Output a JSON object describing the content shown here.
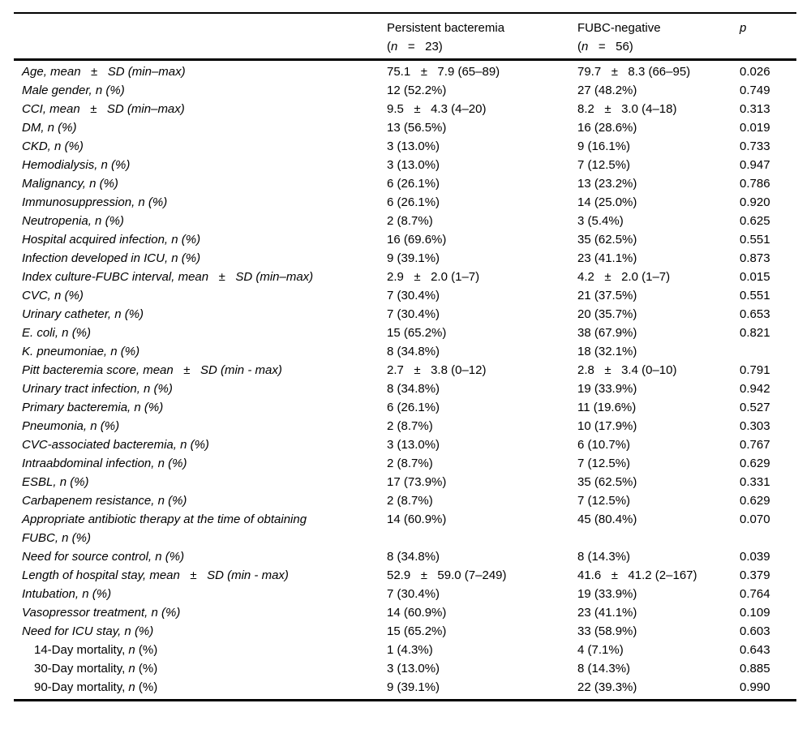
{
  "page": {
    "background_color": "#ffffff",
    "text_color": "#000000",
    "rule_color": "#000000"
  },
  "table": {
    "columns": [
      {
        "label": "",
        "sub": "",
        "italic": false
      },
      {
        "label": "Persistent bacteremia",
        "sub": "(n   =   23)",
        "italic": false
      },
      {
        "label": "FUBC-negative",
        "sub": "(n   =   56)",
        "italic": false
      },
      {
        "label": "p",
        "sub": "",
        "italic": true
      }
    ],
    "rows": [
      {
        "label": "Age, mean   ±   SD (min–max)",
        "italic": true,
        "indent": false,
        "values": [
          "75.1   ±   7.9 (65–89)",
          "79.7   ±   8.3 (66–95)",
          "0.026"
        ]
      },
      {
        "label": "Male gender, n (%)",
        "italic": true,
        "indent": false,
        "values": [
          "12 (52.2%)",
          "27 (48.2%)",
          "0.749"
        ]
      },
      {
        "label": "CCI, mean   ±   SD (min–max)",
        "italic": true,
        "indent": false,
        "values": [
          "9.5   ±   4.3 (4–20)",
          "8.2   ±   3.0 (4–18)",
          "0.313"
        ]
      },
      {
        "label": "DM, n (%)",
        "italic": true,
        "indent": false,
        "values": [
          "13 (56.5%)",
          "16 (28.6%)",
          "0.019"
        ]
      },
      {
        "label": "CKD, n (%)",
        "italic": true,
        "indent": false,
        "values": [
          "3 (13.0%)",
          "9 (16.1%)",
          "0.733"
        ]
      },
      {
        "label": "Hemodialysis, n (%)",
        "italic": true,
        "indent": false,
        "values": [
          "3 (13.0%)",
          "7 (12.5%)",
          "0.947"
        ]
      },
      {
        "label": "Malignancy, n (%)",
        "italic": true,
        "indent": false,
        "values": [
          "6 (26.1%)",
          "13 (23.2%)",
          "0.786"
        ]
      },
      {
        "label": "Immunosuppression, n (%)",
        "italic": true,
        "indent": false,
        "values": [
          "6 (26.1%)",
          "14 (25.0%)",
          "0.920"
        ]
      },
      {
        "label": "Neutropenia, n (%)",
        "italic": true,
        "indent": false,
        "values": [
          "2 (8.7%)",
          "3 (5.4%)",
          "0.625"
        ]
      },
      {
        "label": "Hospital acquired infection, n (%)",
        "italic": true,
        "indent": false,
        "values": [
          "16 (69.6%)",
          "35 (62.5%)",
          "0.551"
        ]
      },
      {
        "label": "Infection developed in ICU, n (%)",
        "italic": true,
        "indent": false,
        "values": [
          "9 (39.1%)",
          "23 (41.1%)",
          "0.873"
        ]
      },
      {
        "label": "Index culture-FUBC interval, mean   ±   SD (min–max)",
        "italic": true,
        "indent": false,
        "values": [
          "2.9   ±   2.0 (1–7)",
          "4.2   ±   2.0 (1–7)",
          "0.015"
        ]
      },
      {
        "label": "CVC, n (%)",
        "italic": true,
        "indent": false,
        "values": [
          "7 (30.4%)",
          "21 (37.5%)",
          "0.551"
        ]
      },
      {
        "label": "Urinary catheter, n (%)",
        "italic": true,
        "indent": false,
        "values": [
          "7 (30.4%)",
          "20 (35.7%)",
          "0.653"
        ]
      },
      {
        "label": "E. coli, n (%)",
        "italic": true,
        "indent": false,
        "values": [
          "15 (65.2%)",
          "38 (67.9%)",
          "0.821"
        ]
      },
      {
        "label": "K. pneumoniae, n (%)",
        "italic": true,
        "indent": false,
        "values": [
          "8 (34.8%)",
          "18 (32.1%)",
          ""
        ]
      },
      {
        "label": "Pitt bacteremia score, mean   ±   SD (min - max)",
        "italic": true,
        "indent": false,
        "values": [
          "2.7   ±   3.8 (0–12)",
          "2.8   ±   3.4 (0–10)",
          "0.791"
        ]
      },
      {
        "label": "Urinary tract infection, n (%)",
        "italic": true,
        "indent": false,
        "values": [
          "8 (34.8%)",
          "19 (33.9%)",
          "0.942"
        ]
      },
      {
        "label": "Primary bacteremia, n (%)",
        "italic": true,
        "indent": false,
        "values": [
          "6 (26.1%)",
          "11 (19.6%)",
          "0.527"
        ]
      },
      {
        "label": "Pneumonia, n (%)",
        "italic": true,
        "indent": false,
        "values": [
          "2 (8.7%)",
          "10 (17.9%)",
          "0.303"
        ]
      },
      {
        "label": "CVC-associated bacteremia, n (%)",
        "italic": true,
        "indent": false,
        "values": [
          "3 (13.0%)",
          "6 (10.7%)",
          "0.767"
        ]
      },
      {
        "label": "Intraabdominal infection, n (%)",
        "italic": true,
        "indent": false,
        "values": [
          "2 (8.7%)",
          "7 (12.5%)",
          "0.629"
        ]
      },
      {
        "label": "ESBL, n (%)",
        "italic": true,
        "indent": false,
        "values": [
          "17 (73.9%)",
          "35 (62.5%)",
          "0.331"
        ]
      },
      {
        "label": "Carbapenem resistance, n (%)",
        "italic": true,
        "indent": false,
        "values": [
          "2 (8.7%)",
          "7 (12.5%)",
          "0.629"
        ]
      },
      {
        "label": "Appropriate antibiotic therapy at the time of obtaining FUBC, n (%)",
        "italic": true,
        "indent": false,
        "values": [
          "14 (60.9%)",
          "45 (80.4%)",
          "0.070"
        ]
      },
      {
        "label": "Need for source control, n (%)",
        "italic": true,
        "indent": false,
        "values": [
          "8 (34.8%)",
          "8 (14.3%)",
          "0.039"
        ]
      },
      {
        "label": "Length of hospital stay, mean   ±   SD (min - max)",
        "italic": true,
        "indent": false,
        "values": [
          "52.9   ±   59.0 (7–249)",
          "41.6   ±   41.2 (2–167)",
          "0.379"
        ]
      },
      {
        "label": "Intubation, n (%)",
        "italic": true,
        "indent": false,
        "values": [
          "7 (30.4%)",
          "19 (33.9%)",
          "0.764"
        ]
      },
      {
        "label": "Vasopressor treatment, n (%)",
        "italic": true,
        "indent": false,
        "values": [
          "14 (60.9%)",
          "23 (41.1%)",
          "0.109"
        ]
      },
      {
        "label": "Need for ICU stay, n (%)",
        "italic": true,
        "indent": false,
        "values": [
          "15 (65.2%)",
          "33 (58.9%)",
          "0.603"
        ]
      },
      {
        "label": "14-Day mortality, n (%)",
        "italic": false,
        "indent": true,
        "values": [
          "1 (4.3%)",
          "4 (7.1%)",
          "0.643"
        ]
      },
      {
        "label": "30-Day mortality, n (%)",
        "italic": false,
        "indent": true,
        "values": [
          "3 (13.0%)",
          "8 (14.3%)",
          "0.885"
        ]
      },
      {
        "label": "90-Day mortality, n (%)",
        "italic": false,
        "indent": true,
        "values": [
          "9 (39.1%)",
          "22 (39.3%)",
          "0.990"
        ]
      }
    ]
  }
}
